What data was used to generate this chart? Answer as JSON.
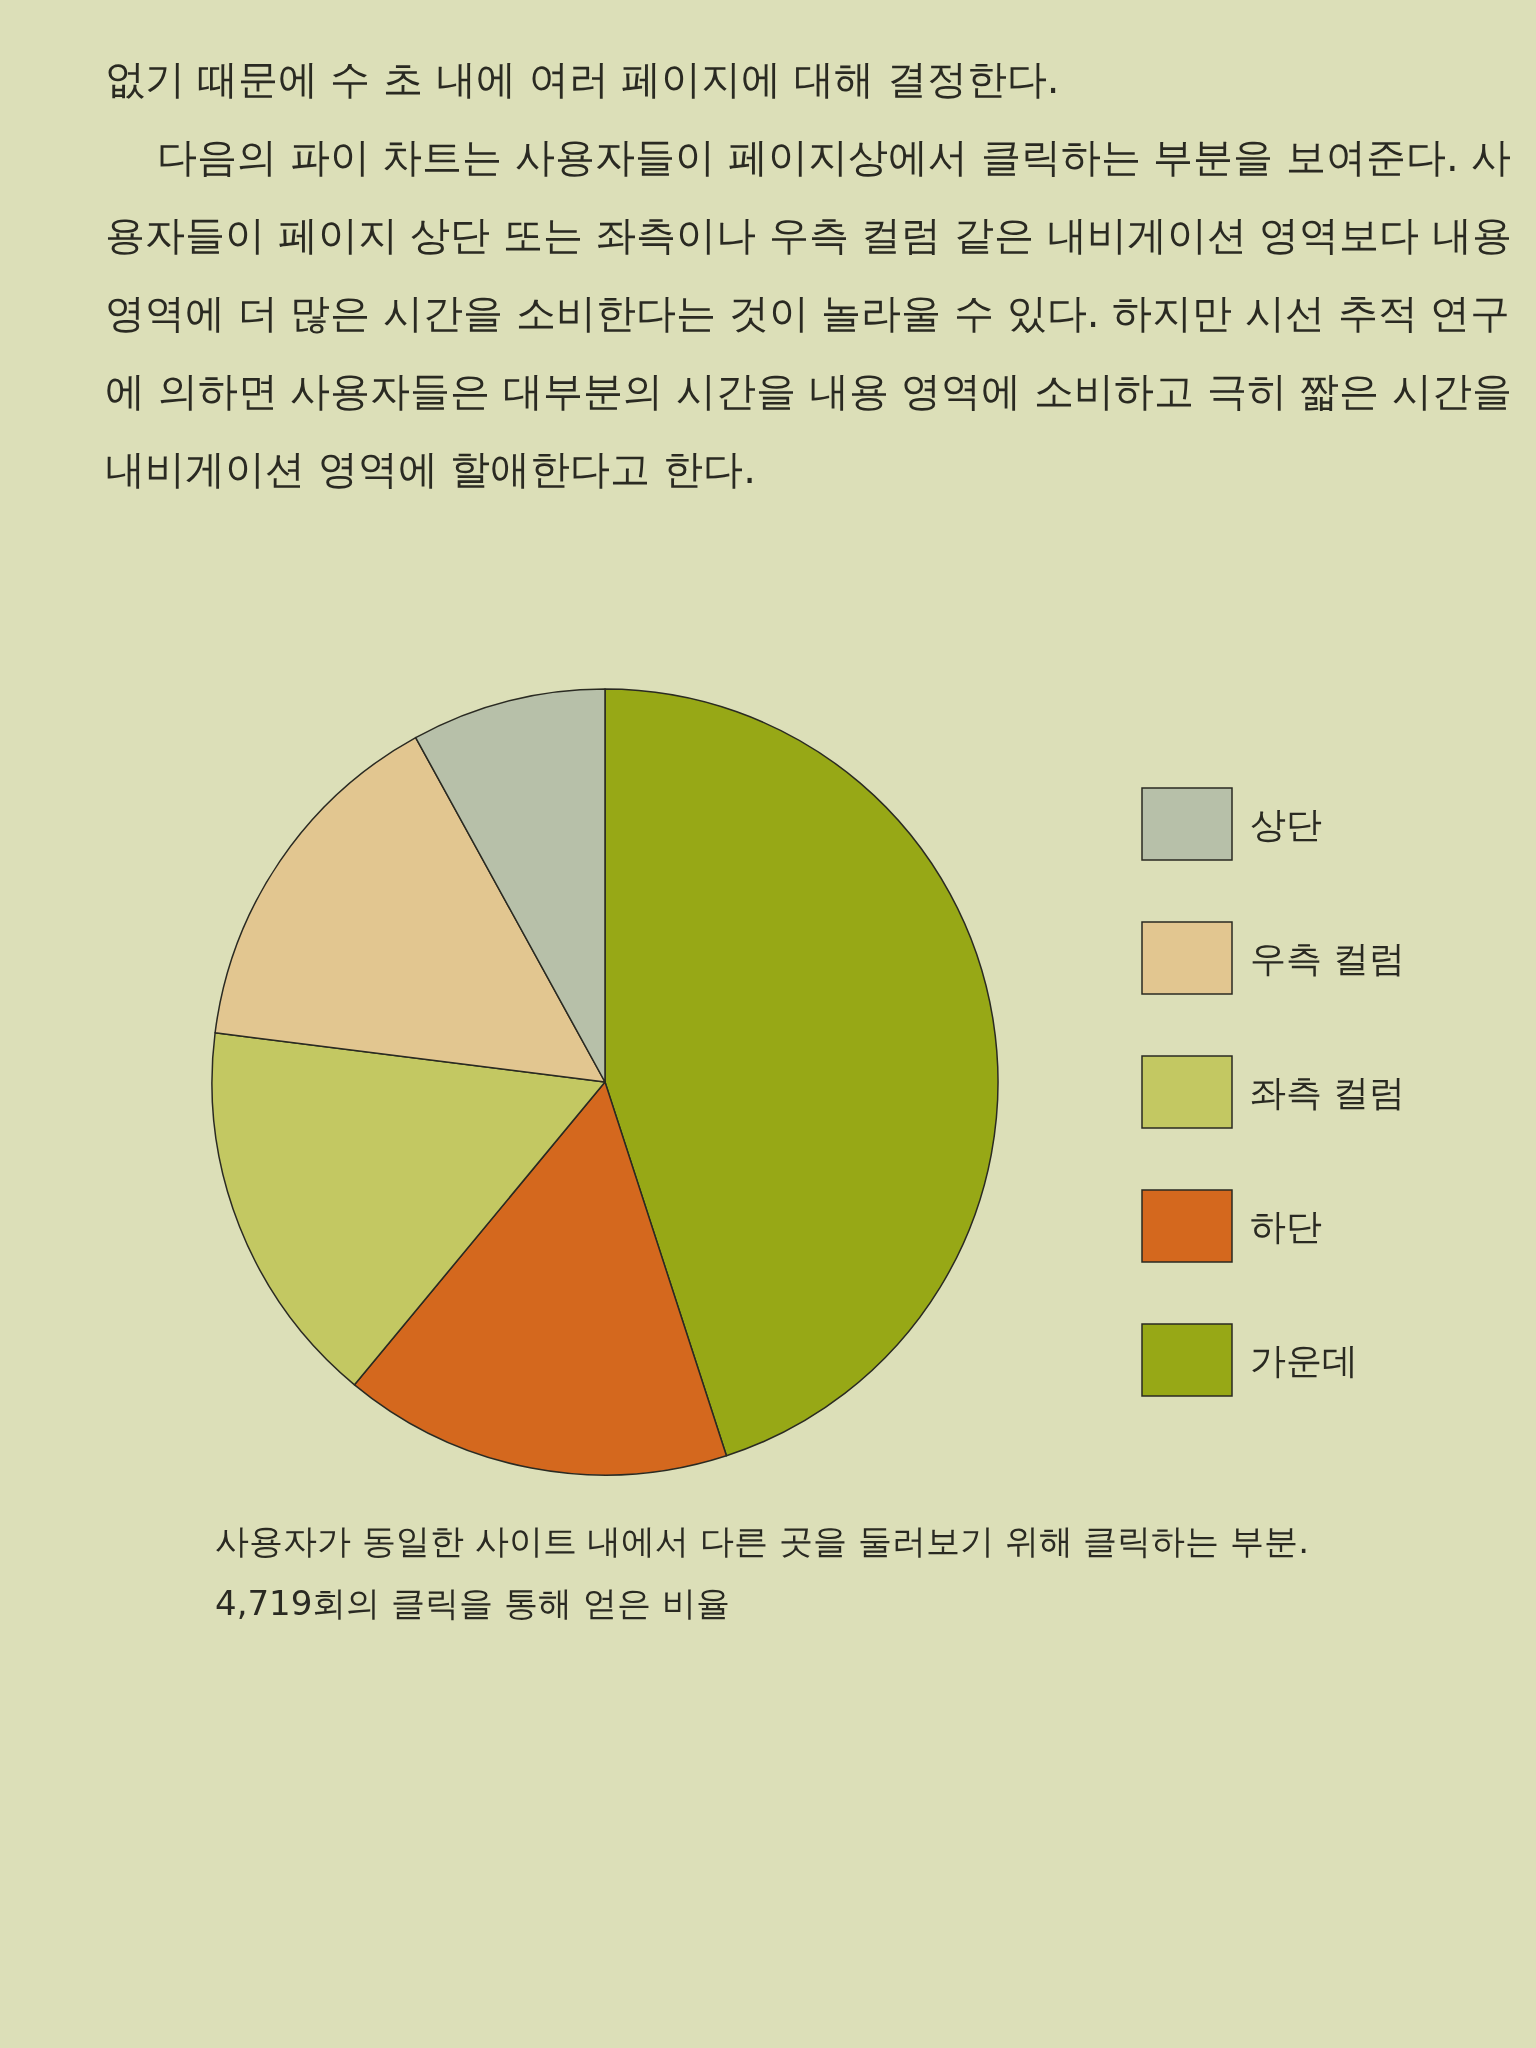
{
  "chart_data": {
    "type": "pie",
    "categories": [
      "가운데",
      "하단",
      "좌측 컬럼",
      "우측 컬럼",
      "상단"
    ],
    "values": [
      45,
      16,
      16,
      15,
      8
    ],
    "colors": [
      "#97a816",
      "#d4681e",
      "#c3c862",
      "#e2c690",
      "#b7c0a9"
    ],
    "legend": "right",
    "annotations": [
      "없기 때문에 수 초 내에 여러 페이지에 대해 결정한다.",
      "다음의 파이 차트는 사용자들이 페이지상에서 클릭하는 부분을 보여준다. 사용자들이 페이지 상단 또는 좌측이나 우측 컬럼 같은 내비게이션 영역보다 내용 영역에 더 많은 시간을 소비한다는 것이 놀라울 수 있다. 하지만 시선 추적 연구에 의하면 사용자들은 대부분의 시간을 내용 영역에 소비하고 극히 짧은 시간을 내비게이션 영역에 할애한다고 한다.",
      "사용자가 동일한 사이트 내에서 다른 곳을 둘러보기 위해 클릭하는 부분. 4,719회의 클릭을 통해 얻은 비율"
    ]
  }
}
